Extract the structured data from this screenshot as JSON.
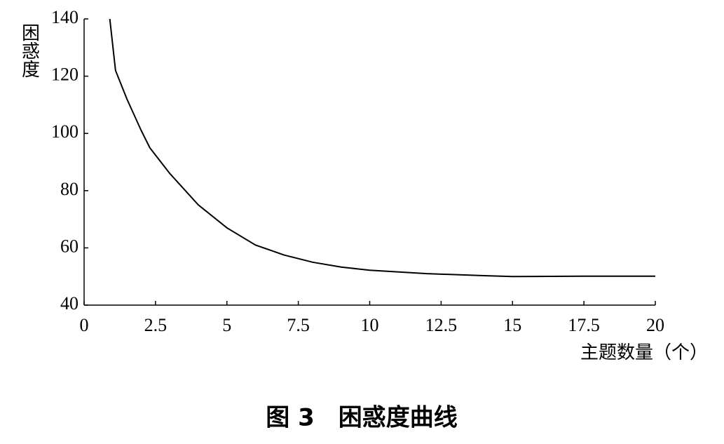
{
  "chart_data": {
    "type": "line",
    "y_label": "困惑度",
    "x_label": "主题数量（个）",
    "caption": "图 3　困惑度曲线",
    "x": [
      0.9,
      1.1,
      1.5,
      2.0,
      2.3,
      3.0,
      4.0,
      5.0,
      6.0,
      7.0,
      8.0,
      9.0,
      10.0,
      12.0,
      14.0,
      15.0,
      17.5,
      20.0
    ],
    "series": [
      {
        "name": "困惑度",
        "color": "#000000",
        "values": [
          140,
          122,
          112,
          101,
          95,
          86,
          75,
          67,
          61,
          57.5,
          55,
          53.3,
          52.2,
          51,
          50.3,
          50,
          50.1,
          50.1
        ]
      }
    ],
    "xlim": [
      0,
      20
    ],
    "xticks": [
      0,
      2.5,
      5,
      7.5,
      10,
      12.5,
      15,
      17.5,
      20
    ],
    "ylim": [
      40,
      140
    ],
    "yticks": [
      40,
      60,
      80,
      100,
      120,
      140
    ],
    "grid": false
  }
}
